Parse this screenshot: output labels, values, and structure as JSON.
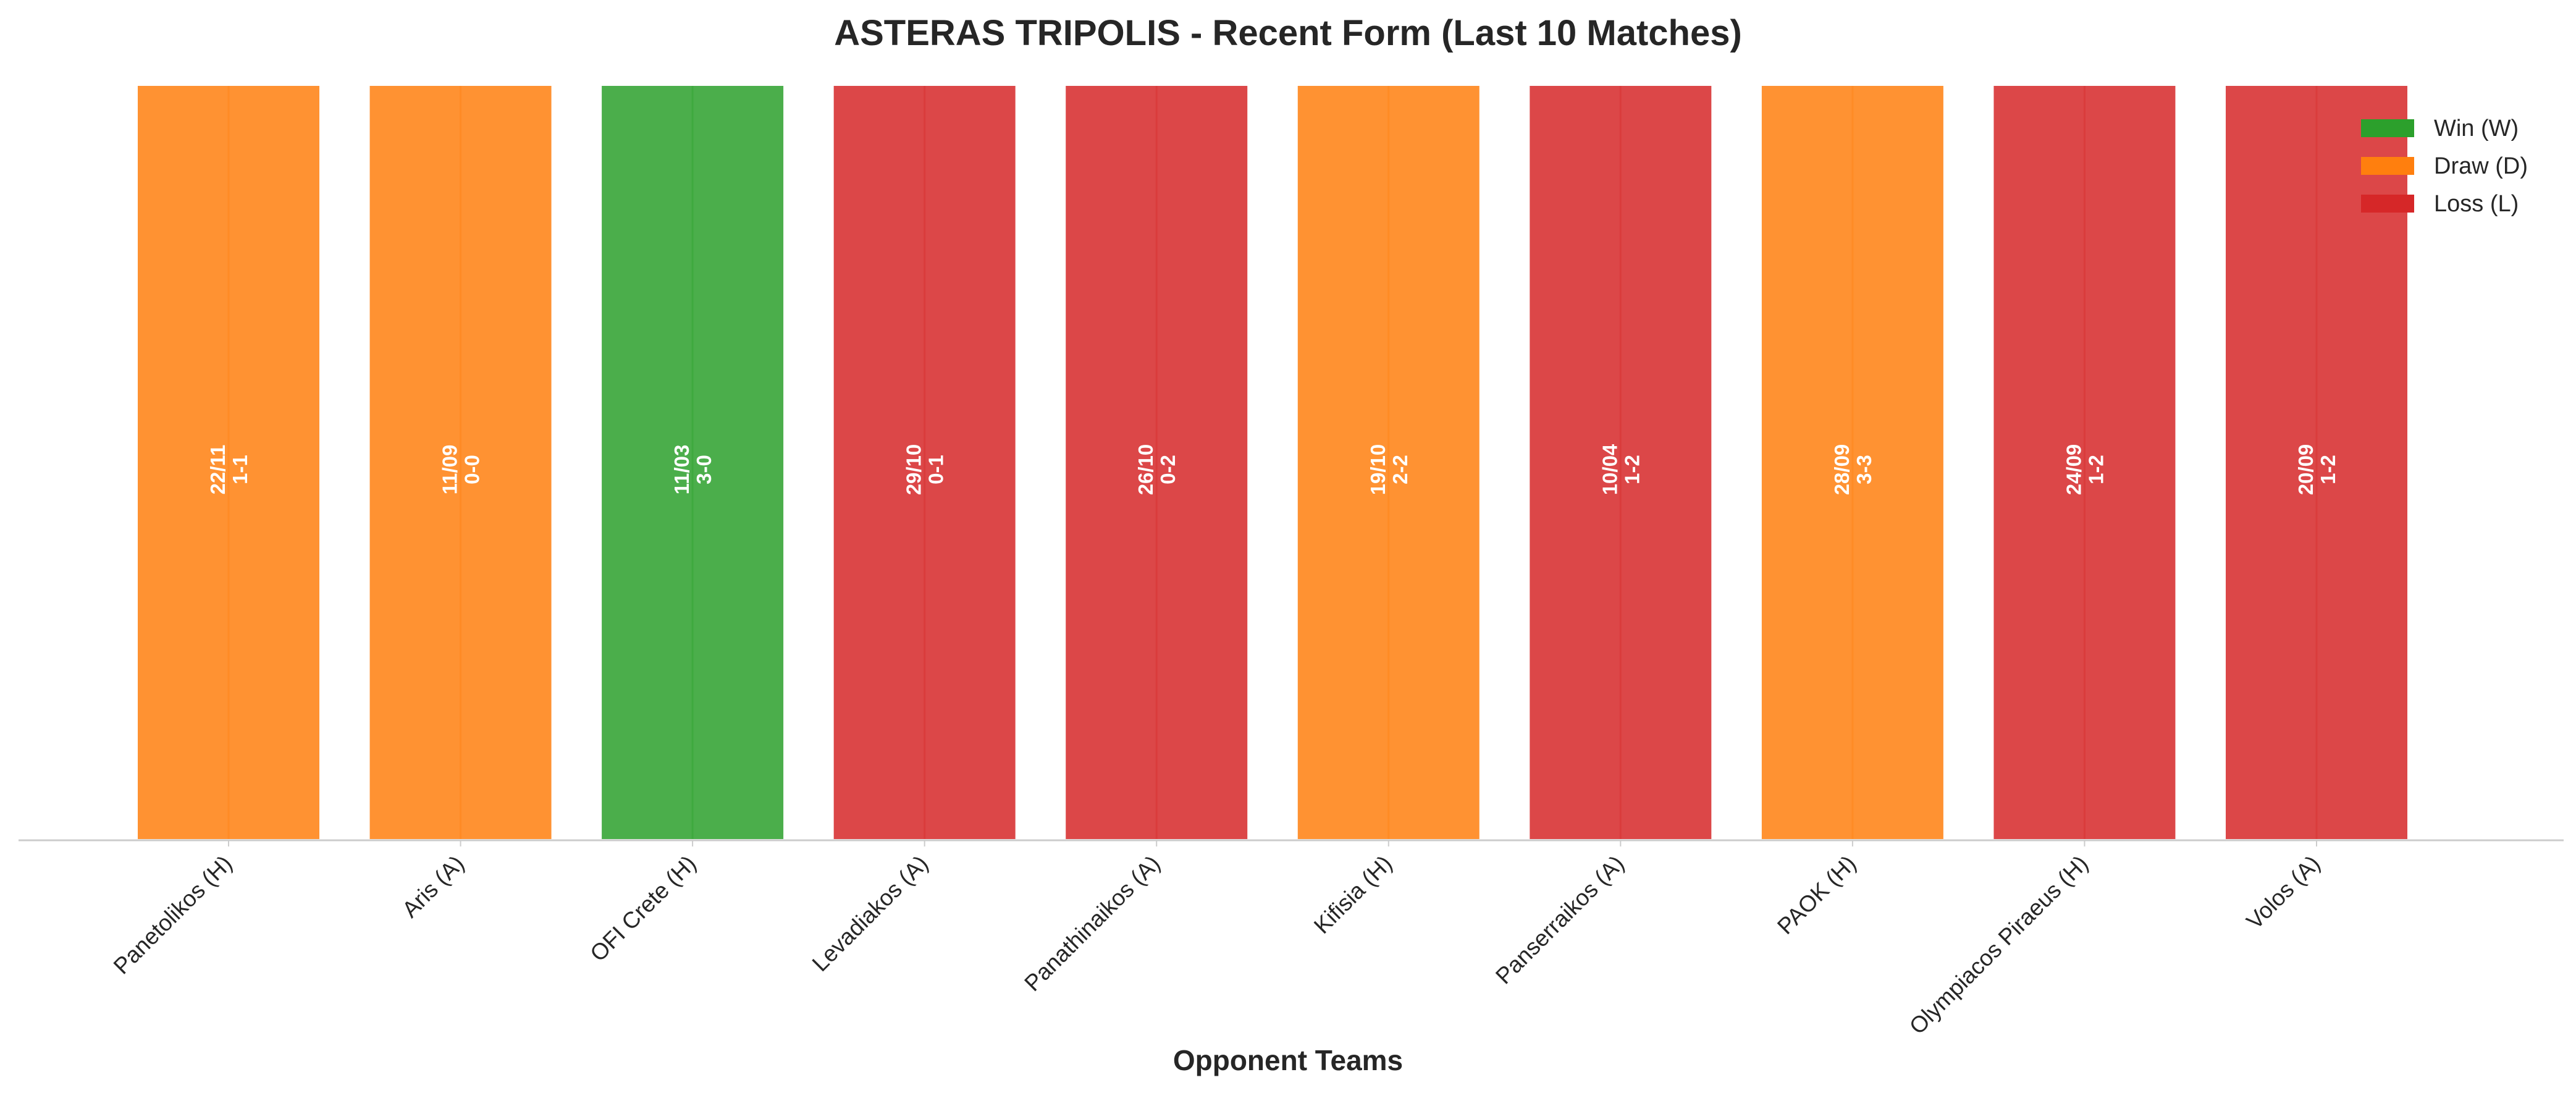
{
  "chart_data": {
    "type": "bar",
    "title": "ASTERAS TRIPOLIS - Recent Form (Last 10 Matches)",
    "xlabel": "Opponent Teams",
    "ylabel": "",
    "grid": false,
    "legend_placement": "top-right",
    "categories": [
      "Panetolikos (H)",
      "Aris (A)",
      "OFI Crete (H)",
      "Levadiakos (A)",
      "Panathinaikos (A)",
      "Kifisia (H)",
      "Panserraikos (A)",
      "PAOK (H)",
      "Olympiacos Piraeus (H)",
      "Volos (A)"
    ],
    "values": [
      1,
      1,
      1,
      1,
      1,
      1,
      1,
      1,
      1,
      1
    ],
    "ylim": [
      0,
      1.05
    ],
    "results": [
      "D",
      "D",
      "W",
      "L",
      "L",
      "D",
      "L",
      "D",
      "L",
      "L"
    ],
    "dates": [
      "22/11",
      "11/09",
      "11/03",
      "29/10",
      "26/10",
      "19/10",
      "10/04",
      "28/09",
      "24/09",
      "20/09"
    ],
    "scores": [
      "1-1",
      "0-0",
      "3-0",
      "0-1",
      "0-2",
      "2-2",
      "1-2",
      "3-3",
      "1-2",
      "1-2"
    ],
    "legend": [
      {
        "key": "W",
        "label": "Win (W)",
        "color": "#2ca02c"
      },
      {
        "key": "D",
        "label": "Draw (D)",
        "color": "#ff7f0e"
      },
      {
        "key": "L",
        "label": "Loss (L)",
        "color": "#d62728"
      }
    ]
  }
}
